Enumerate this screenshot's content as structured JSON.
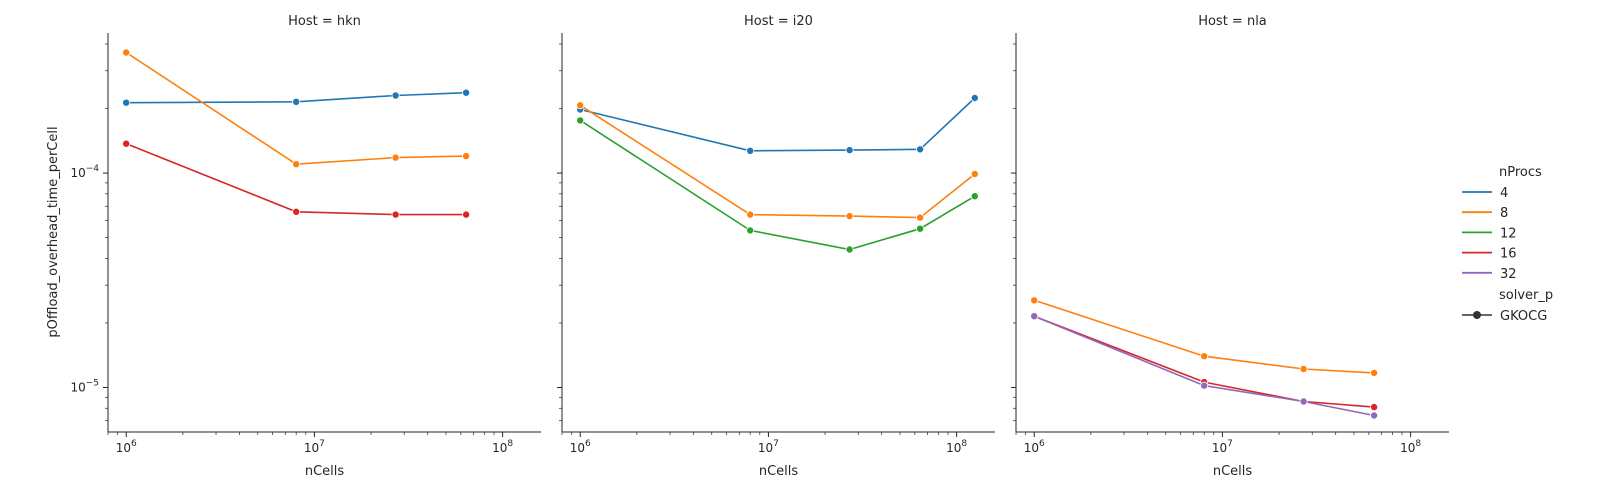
{
  "chart_data": {
    "type": "line",
    "facet_by": "Host",
    "x_scale": "log",
    "y_scale": "log",
    "xlabel": "nCells",
    "ylabel": "pOffload_overhead_time_perCell",
    "xlim": [
      800000,
      160000000
    ],
    "ylim": [
      6.2e-06,
      0.00045
    ],
    "x_ticks": [
      {
        "value": 1000000,
        "label": "10^6"
      },
      {
        "value": 10000000,
        "label": "10^7"
      },
      {
        "value": 100000000,
        "label": "10^8"
      }
    ],
    "y_ticks": [
      {
        "value": 1e-05,
        "label": "10^-5"
      },
      {
        "value": 0.0001,
        "label": "10^-4"
      }
    ],
    "colors": {
      "4": "#1f77b4",
      "8": "#ff7f0e",
      "12": "#2ca02c",
      "16": "#d62728",
      "32": "#9467bd"
    },
    "panels": [
      {
        "title": "Host = hkn",
        "series": [
          {
            "name": "4",
            "x": [
              1000000,
              8000000,
              27000000,
              64000000
            ],
            "y": [
              0.000213,
              0.000215,
              0.00023,
              0.000237
            ]
          },
          {
            "name": "8",
            "x": [
              1000000,
              8000000,
              27000000,
              64000000
            ],
            "y": [
              0.000365,
              0.00011,
              0.000118,
              0.00012
            ]
          },
          {
            "name": "16",
            "x": [
              1000000,
              8000000,
              27000000,
              64000000
            ],
            "y": [
              0.000137,
              6.6e-05,
              6.4e-05,
              6.4e-05
            ]
          }
        ]
      },
      {
        "title": "Host = i20",
        "series": [
          {
            "name": "4",
            "x": [
              1000000,
              8000000,
              27000000,
              64000000,
              125000000
            ],
            "y": [
              0.000198,
              0.000127,
              0.000128,
              0.000129,
              0.000224
            ]
          },
          {
            "name": "8",
            "x": [
              1000000,
              8000000,
              27000000,
              64000000,
              125000000
            ],
            "y": [
              0.000207,
              6.4e-05,
              6.3e-05,
              6.2e-05,
              9.9e-05
            ]
          },
          {
            "name": "12",
            "x": [
              1000000,
              8000000,
              27000000,
              64000000,
              125000000
            ],
            "y": [
              0.000176,
              5.4e-05,
              4.4e-05,
              5.5e-05,
              7.8e-05
            ]
          }
        ]
      },
      {
        "title": "Host = nla",
        "series": [
          {
            "name": "8",
            "x": [
              1000000,
              8000000,
              27000000,
              64000000
            ],
            "y": [
              2.55e-05,
              1.4e-05,
              1.22e-05,
              1.17e-05
            ]
          },
          {
            "name": "16",
            "x": [
              1000000,
              8000000,
              27000000,
              64000000
            ],
            "y": [
              2.15e-05,
              1.06e-05,
              8.6e-06,
              8.1e-06
            ]
          },
          {
            "name": "32",
            "x": [
              1000000,
              8000000,
              27000000,
              64000000
            ],
            "y": [
              2.15e-05,
              1.02e-05,
              8.6e-06,
              7.4e-06
            ]
          }
        ]
      }
    ],
    "legend": {
      "placement": "right",
      "hue_title": "nProcs",
      "hue_entries": [
        "4",
        "8",
        "12",
        "16",
        "32"
      ],
      "style_title": "solver_p",
      "style_entries": [
        "GKOCG"
      ]
    }
  }
}
